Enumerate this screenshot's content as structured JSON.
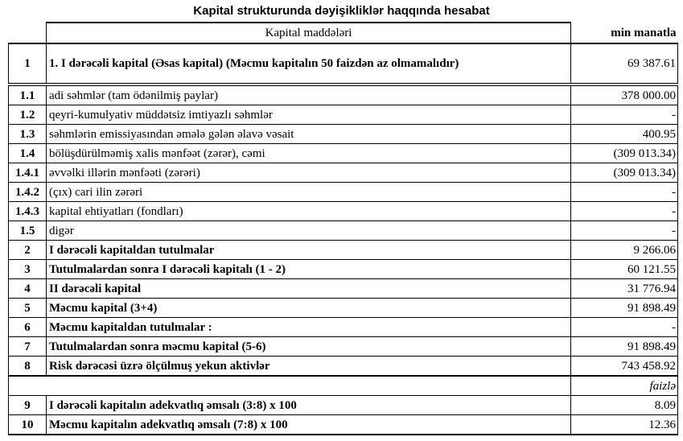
{
  "title": "Kapital strukturunda dəyişikliklər haqqında hesabat",
  "header": {
    "no": "",
    "item": "Kapital maddələri",
    "unit": "min manatla"
  },
  "rows": [
    {
      "no": "1",
      "item": "1. I dərəcəli kapital (Əsas kapital) (Məcmu kapitalın 50 faizdən  az olmamalıdır)",
      "value": "69 387.61",
      "bold": true
    },
    {
      "no": "1.1",
      "item": "adi səhmlər (tam ödənilmiş paylar)",
      "value": "378 000.00",
      "bold": false
    },
    {
      "no": "1.2",
      "item": "qeyri-kumulyativ müddətsiz imtiyazlı səhmlər",
      "value": "-",
      "bold": false
    },
    {
      "no": "1.3",
      "item": "səhmlərin emissiyasından əmələ gələn  əlavə vəsait",
      "value": "400.95",
      "bold": false
    },
    {
      "no": "1.4",
      "item": "bölüşdürülməmiş xalis mənfəət (zərər), cəmi",
      "value": "(309 013.34)",
      "bold": false
    },
    {
      "no": "1.4.1",
      "item": "əvvəlki illərin mənfəəti (zərəri)",
      "value": "(309 013.34)",
      "bold": false
    },
    {
      "no": "1.4.2",
      "item": "(çıx) cari ilin zərəri",
      "value": "-",
      "bold": false
    },
    {
      "no": "1.4.3",
      "item": "kapital ehtiyatları (fondları)",
      "value": "-",
      "bold": false
    },
    {
      "no": "1.5",
      "item": "digər",
      "value": "-",
      "bold": false
    },
    {
      "no": "2",
      "item": "I dərəcəli kapitaldan  tutulmalar",
      "value": "9 266.06",
      "bold": true
    },
    {
      "no": "3",
      "item": "Tutulmalardan  sonra I dərəcəli kapitalı (1 - 2)",
      "value": "60 121.55",
      "bold": true
    },
    {
      "no": "4",
      "item": "II dərəcəli  kapital",
      "value": "31 776.94",
      "bold": true
    },
    {
      "no": "5",
      "item": "Məcmu kapital (3+4)",
      "value": "91 898.49",
      "bold": true
    },
    {
      "no": "6",
      "item": "Məcmu kapitaldan tutulmalar :",
      "value": "-",
      "bold": true
    },
    {
      "no": "7",
      "item": "Tutulmalardan sonra məcmu kapital (5-6)",
      "value": "91 898.49",
      "bold": true
    },
    {
      "no": "8",
      "item": "Risk dərəcəsi üzrə ölçülmuş  yekun aktivlər",
      "value": "743 458.92",
      "bold": true
    }
  ],
  "unit2": "faizlə",
  "rows2": [
    {
      "no": "9",
      "item": "I dərəcəli  kapitalın  adekvatlıq əmsalı (3:8) x 100",
      "value": "8.09",
      "bold": true
    },
    {
      "no": "10",
      "item": "Məcmu kapitalın  adekvatlıq  əmsalı (7:8) x 100",
      "value": "12.36",
      "bold": true
    }
  ]
}
